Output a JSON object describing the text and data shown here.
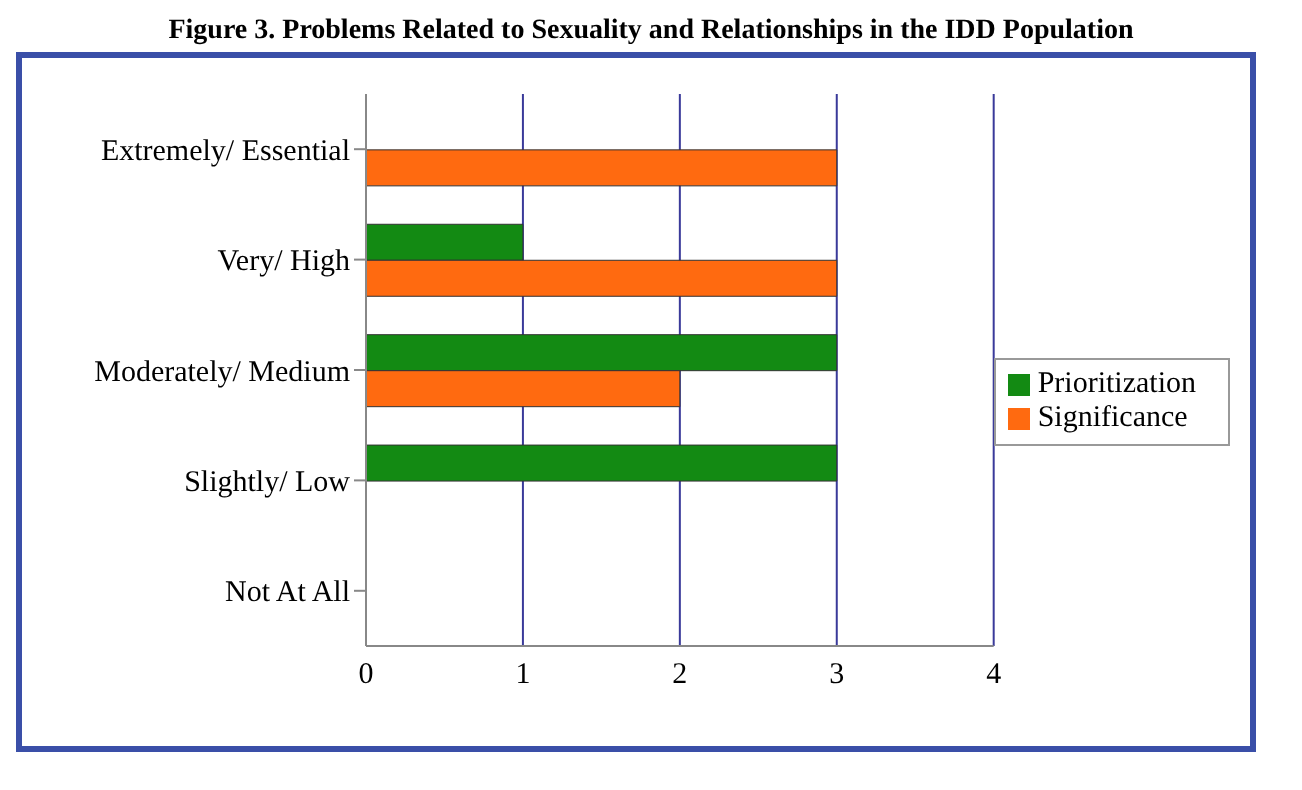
{
  "chart_data": {
    "type": "bar",
    "orientation": "horizontal",
    "title": "Figure 3. Problems Related to Sexuality and Relationships in the IDD Population",
    "categories": [
      "Extremely/ Essential",
      "Very/ High",
      "Moderately/ Medium",
      "Slightly/ Low",
      "Not At All"
    ],
    "series": [
      {
        "name": "Prioritization",
        "color": "#138a13",
        "values": [
          0,
          1,
          3,
          3,
          0
        ]
      },
      {
        "name": "Significance",
        "color": "#ff6a10",
        "values": [
          3,
          3,
          2,
          0,
          0
        ]
      }
    ],
    "xlim": [
      0,
      4
    ],
    "xticks": [
      0,
      1,
      2,
      3,
      4
    ],
    "grid": "x",
    "legend": "right"
  }
}
